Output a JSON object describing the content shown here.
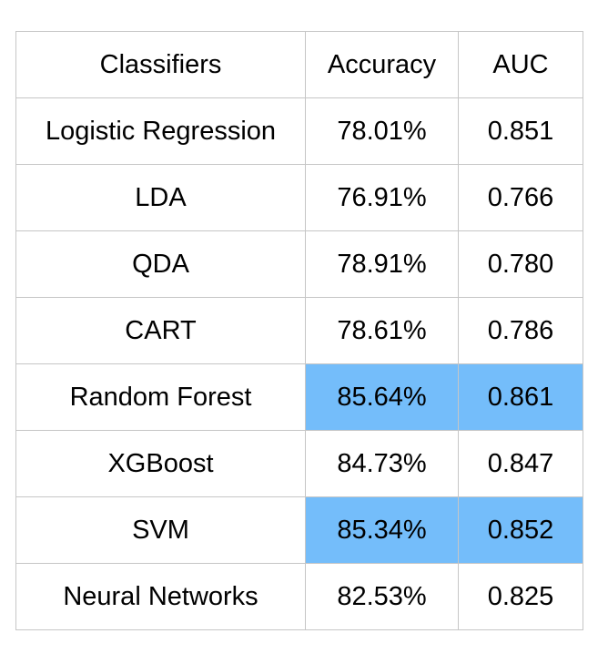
{
  "table": {
    "headers": {
      "classifier": "Classifiers",
      "accuracy": "Accuracy",
      "auc": "AUC"
    },
    "highlight_color": "#74bdfa",
    "rows": [
      {
        "classifier": "Logistic Regression",
        "accuracy": "78.01%",
        "auc": "0.851",
        "highlighted": false
      },
      {
        "classifier": "LDA",
        "accuracy": "76.91%",
        "auc": "0.766",
        "highlighted": false
      },
      {
        "classifier": "QDA",
        "accuracy": "78.91%",
        "auc": "0.780",
        "highlighted": false
      },
      {
        "classifier": "CART",
        "accuracy": "78.61%",
        "auc": "0.786",
        "highlighted": false
      },
      {
        "classifier": "Random Forest",
        "accuracy": "85.64%",
        "auc": "0.861",
        "highlighted": true
      },
      {
        "classifier": "XGBoost",
        "accuracy": "84.73%",
        "auc": "0.847",
        "highlighted": false
      },
      {
        "classifier": "SVM",
        "accuracy": "85.34%",
        "auc": "0.852",
        "highlighted": true
      },
      {
        "classifier": "Neural Networks",
        "accuracy": "82.53%",
        "auc": "0.825",
        "highlighted": false
      }
    ]
  }
}
